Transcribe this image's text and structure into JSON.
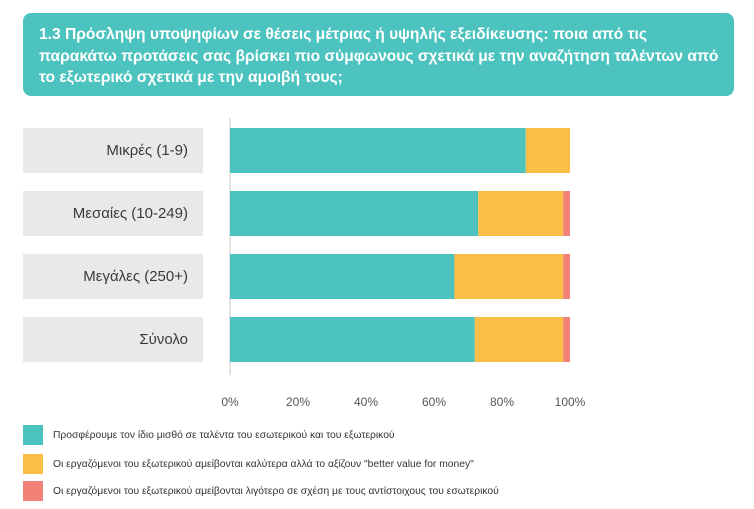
{
  "title": "1.3 Πρόσληψη υποψηφίων σε θέσεις μέτριας ή υψηλής εξειδίκευσης: ποια από τις παρακάτω προτάσεις σας βρίσκει πιο σύμφωνους σχετικά με την αναζήτηση ταλέντων από το εξωτερικό σχετικά με την αμοιβή τους;",
  "colors": {
    "title_bg": "#4cc3be",
    "teal": "#4cc3be",
    "yellow": "#fbbf47",
    "red": "#f28277",
    "label_bg": "#e8e9ea"
  },
  "chart_data": {
    "type": "bar",
    "orientation": "horizontal",
    "stacked": true,
    "categories": [
      "Μικρές (1-9)",
      "Μεσαίες (10-249)",
      "Μεγάλες (250+)",
      "Σύνολο"
    ],
    "series": [
      {
        "name": "Προσφέρουμε τον ίδιο μισθό σε ταλέντα του εσωτερικού και του εξωτερικού",
        "color": "#4cc3be",
        "values": [
          87,
          73,
          66,
          72
        ]
      },
      {
        "name": "Οι εργαζόμενοι του εξωτερικού αμείβονται καλύτερα αλλά το αξίζουν \"better value for money\"",
        "color": "#fbbf47",
        "values": [
          13,
          25,
          32,
          26
        ]
      },
      {
        "name": "Οι εργαζόμενοι του εξωτερικού αμείβονται λιγότερο σε σχέση με τους αντίστοιχους του εσωτερικού",
        "color": "#f28277",
        "values": [
          0,
          2,
          2,
          2
        ]
      }
    ],
    "xlim": [
      0,
      100
    ],
    "xticks": [
      "0%",
      "20%",
      "40%",
      "60%",
      "80%",
      "100%"
    ],
    "legend_position": "bottom-left",
    "grid": false
  }
}
